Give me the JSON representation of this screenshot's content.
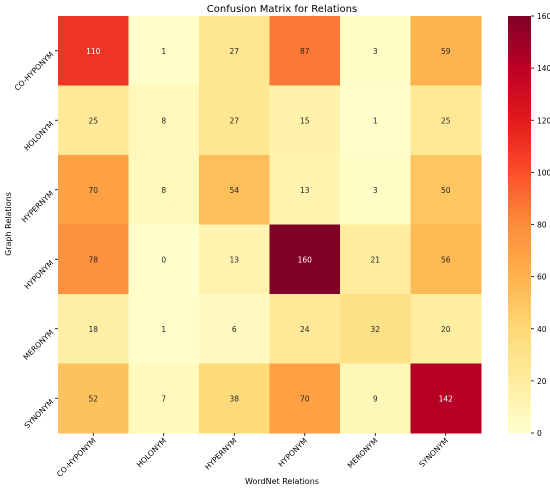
{
  "chart_data": {
    "type": "heatmap",
    "title": "Confusion Matrix for Relations",
    "xlabel": "WordNet Relations",
    "ylabel": "Graph Relations",
    "x_categories": [
      "CO-HYPONYM",
      "HOLONYM",
      "HYPERNYM",
      "HYPONYM",
      "MERONYM",
      "SYNONYM"
    ],
    "y_categories": [
      "CO-HYPONYM",
      "HOLONYM",
      "HYPERNYM",
      "HYPONYM",
      "MERONYM",
      "SYNONYM"
    ],
    "values": [
      [
        110,
        1,
        27,
        87,
        3,
        59
      ],
      [
        25,
        8,
        27,
        15,
        1,
        25
      ],
      [
        70,
        8,
        54,
        13,
        3,
        50
      ],
      [
        78,
        0,
        13,
        160,
        21,
        56
      ],
      [
        18,
        1,
        6,
        24,
        32,
        20
      ],
      [
        52,
        7,
        38,
        70,
        9,
        142
      ]
    ],
    "colorbar": {
      "min": 0,
      "max": 160,
      "ticks": [
        0,
        20,
        40,
        60,
        80,
        100,
        120,
        140,
        160
      ],
      "colormap": "YlOrRd"
    },
    "colormap_stops": [
      "#ffffcc",
      "#ffeda0",
      "#fed976",
      "#feb24c",
      "#fd8d3c",
      "#fc4e2a",
      "#e31a1c",
      "#bd0026",
      "#800026"
    ]
  }
}
